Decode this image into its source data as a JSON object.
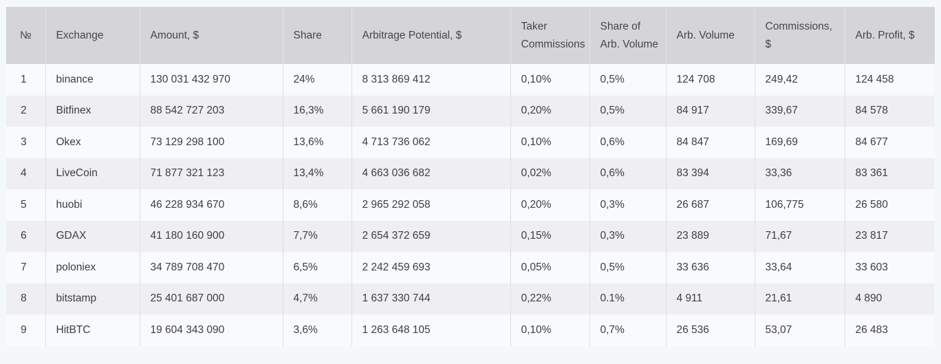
{
  "chart_data": {
    "type": "table",
    "columns": [
      "№",
      "Exchange",
      "Amount, $",
      "Share",
      "Arbitrage Potential, $",
      "Taker Commissions",
      "Share of Arb. Volume",
      "Arb. Volume",
      "Commissions, $",
      "Arb. Profit, $"
    ],
    "column_keys": [
      "number",
      "exchange",
      "amount-usd",
      "share",
      "arbitrage-potential-usd",
      "taker-commissions",
      "share-of-arb-volume",
      "arb-volume",
      "commissions-usd",
      "arb-profit-usd"
    ],
    "rows": [
      [
        "1",
        "binance",
        "130 031 432 970",
        "24%",
        "8 313 869 412",
        "0,10%",
        "0,5%",
        "124 708",
        "249,42",
        "124 458"
      ],
      [
        "2",
        "Bitfinex",
        "88 542 727 203",
        "16,3%",
        "5 661 190 179",
        "0,20%",
        "0,5%",
        "84 917",
        "339,67",
        "84 578"
      ],
      [
        "3",
        "Okex",
        "73 129 298 100",
        "13,6%",
        "4 713 736 062",
        "0,10%",
        "0,6%",
        "84 847",
        "169,69",
        "84 677"
      ],
      [
        "4",
        "LiveCoin",
        "71 877 321 123",
        "13,4%",
        "4 663 036 682",
        "0,02%",
        "0,6%",
        "83 394",
        "33,36",
        "83 361"
      ],
      [
        "5",
        "huobi",
        "46 228 934 670",
        "8,6%",
        "2 965 292 058",
        "0,20%",
        "0,3%",
        "26 687",
        "106,775",
        "26 580"
      ],
      [
        "6",
        "GDAX",
        "41 180 160 900",
        "7,7%",
        "2 654 372 659",
        "0,15%",
        "0,3%",
        "23 889",
        "71,67",
        "23 817"
      ],
      [
        "7",
        "poloniex",
        "34 789 708 470",
        "6,5%",
        "2 242 459 693",
        "0,05%",
        "0,5%",
        "33 636",
        "33,64",
        "33 603"
      ],
      [
        "8",
        "bitstamp",
        "25 401 687 000",
        "4,7%",
        "1 637 330 744",
        "0,22%",
        "0.1%",
        "4 911",
        "21,61",
        "4 890"
      ],
      [
        "9",
        "HitBTC",
        "19 604 343 090",
        "3,6%",
        "1 263 648 105",
        "0,10%",
        "0,7%",
        "26 536",
        "53,07",
        "26 483"
      ]
    ]
  },
  "colors": {
    "page-bg": "#f5f8fb",
    "header-bg": "#d5d4d8",
    "header-text": "#46454a",
    "header-divider": "#e6e5e8",
    "row-odd-bg": "#f8fafd",
    "row-even-bg": "#efeff1",
    "divider": "#dedde1",
    "body-text": "#3e3d41"
  }
}
